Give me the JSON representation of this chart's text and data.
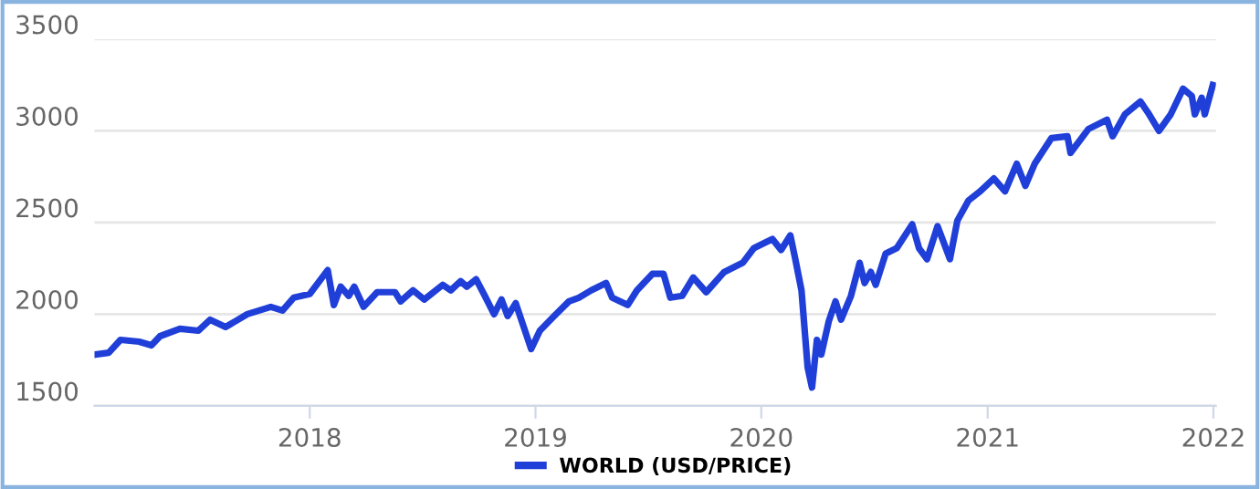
{
  "chart_data": {
    "type": "line",
    "legend": "bottom",
    "grid": "y",
    "marker": "none",
    "line_style": "solid",
    "xlim": [
      "2017-01-18",
      "2022-01-05"
    ],
    "ylim": [
      1500,
      3500
    ],
    "yticks": [
      1500,
      2000,
      2500,
      3000,
      3500
    ],
    "xticks": [
      {
        "value": "2018-01-01",
        "label": "2018"
      },
      {
        "value": "2019-01-01",
        "label": "2019"
      },
      {
        "value": "2020-01-01",
        "label": "2020"
      },
      {
        "value": "2021-01-01",
        "label": "2021"
      },
      {
        "value": "2022-01-01",
        "label": "2022"
      }
    ],
    "x": [
      "2017-01-19",
      "2017-02-10",
      "2017-03-01",
      "2017-03-31",
      "2017-04-20",
      "2017-05-04",
      "2017-06-05",
      "2017-07-05",
      "2017-07-24",
      "2017-08-18",
      "2017-09-22",
      "2017-10-30",
      "2017-11-18",
      "2017-12-06",
      "2018-01-01",
      "2018-01-30",
      "2018-02-09",
      "2018-02-20",
      "2018-03-05",
      "2018-03-14",
      "2018-03-29",
      "2018-04-20",
      "2018-05-19",
      "2018-05-28",
      "2018-06-17",
      "2018-07-05",
      "2018-08-04",
      "2018-08-17",
      "2018-09-02",
      "2018-09-12",
      "2018-09-27",
      "2018-10-11",
      "2018-10-26",
      "2018-11-07",
      "2018-11-17",
      "2018-11-30",
      "2018-12-25",
      "2019-01-08",
      "2019-01-31",
      "2019-02-24",
      "2019-03-12",
      "2019-04-01",
      "2019-04-25",
      "2019-05-05",
      "2019-05-30",
      "2019-06-14",
      "2019-07-09",
      "2019-07-27",
      "2019-08-07",
      "2019-08-26",
      "2019-09-13",
      "2019-10-04",
      "2019-11-02",
      "2019-12-02",
      "2019-12-20",
      "2020-01-19",
      "2020-02-02",
      "2020-02-17",
      "2020-02-25",
      "2020-03-06",
      "2020-03-16",
      "2020-03-23",
      "2020-03-31",
      "2020-04-07",
      "2020-04-19",
      "2020-04-30",
      "2020-05-09",
      "2020-05-25",
      "2020-06-08",
      "2020-06-16",
      "2020-06-26",
      "2020-07-04",
      "2020-07-20",
      "2020-08-07",
      "2020-09-01",
      "2020-09-12",
      "2020-09-25",
      "2020-10-12",
      "2020-11-01",
      "2020-11-13",
      "2020-12-01",
      "2020-12-20",
      "2021-01-11",
      "2021-01-29",
      "2021-02-17",
      "2021-03-03",
      "2021-03-18",
      "2021-04-14",
      "2021-05-10",
      "2021-05-15",
      "2021-06-13",
      "2021-07-13",
      "2021-07-22",
      "2021-08-11",
      "2021-09-05",
      "2021-09-19",
      "2021-10-05",
      "2021-10-24",
      "2021-11-13",
      "2021-11-27",
      "2021-12-02",
      "2021-12-13",
      "2021-12-18",
      "2021-12-31"
    ],
    "series": [
      {
        "name": "WORLD (USD/PRICE)",
        "color": "#1f3fd8",
        "values": [
          1780,
          1790,
          1860,
          1850,
          1830,
          1880,
          1920,
          1910,
          1970,
          1930,
          2000,
          2040,
          2020,
          2090,
          2110,
          2240,
          2050,
          2150,
          2100,
          2150,
          2040,
          2120,
          2120,
          2070,
          2130,
          2080,
          2160,
          2130,
          2180,
          2150,
          2190,
          2100,
          2000,
          2080,
          1990,
          2060,
          1810,
          1910,
          1990,
          2070,
          2090,
          2130,
          2170,
          2090,
          2050,
          2130,
          2220,
          2220,
          2090,
          2100,
          2200,
          2120,
          2230,
          2280,
          2360,
          2410,
          2350,
          2430,
          2300,
          2130,
          1710,
          1600,
          1860,
          1780,
          1960,
          2070,
          1970,
          2100,
          2280,
          2170,
          2230,
          2160,
          2330,
          2360,
          2490,
          2360,
          2300,
          2480,
          2300,
          2510,
          2620,
          2670,
          2740,
          2670,
          2820,
          2700,
          2820,
          2960,
          2970,
          2880,
          3010,
          3060,
          2970,
          3090,
          3160,
          3090,
          3000,
          3090,
          3230,
          3190,
          3090,
          3180,
          3090,
          3250
        ]
      }
    ]
  }
}
